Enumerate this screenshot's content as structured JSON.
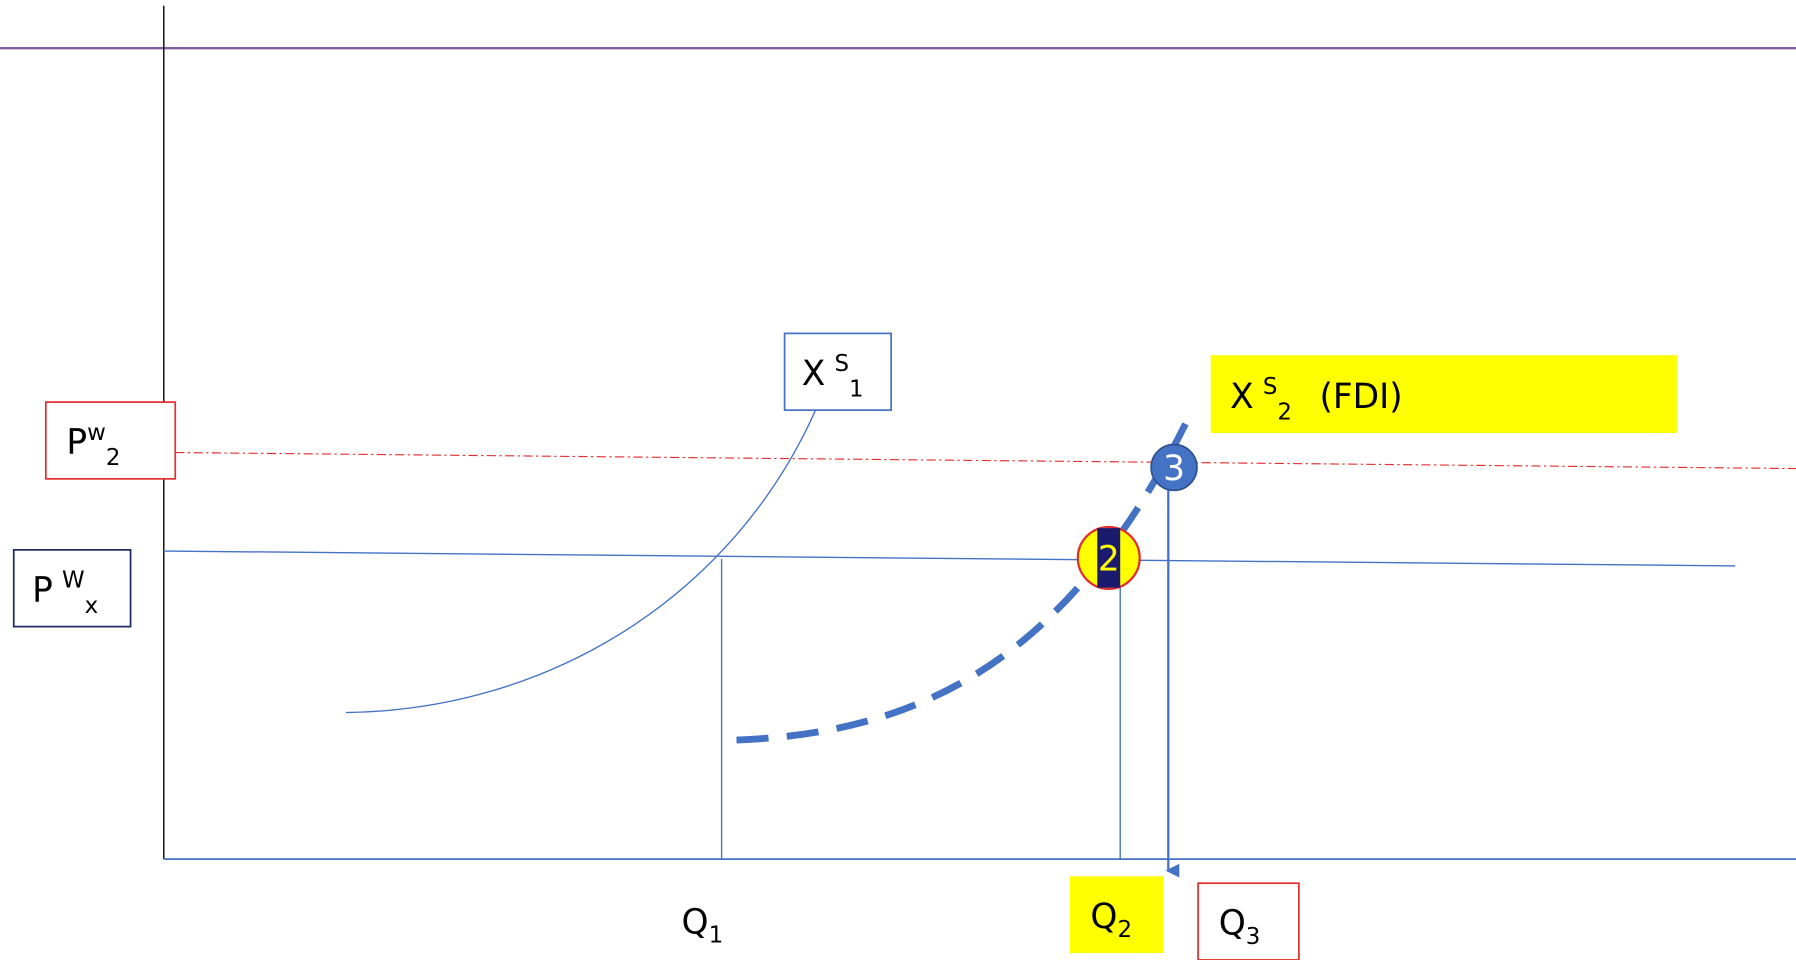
{
  "labels": {
    "pw2": {
      "base": "P",
      "sup": "w",
      "sub": "2"
    },
    "pwx": {
      "base": "P",
      "sup": "W",
      "sub": "x"
    },
    "xs1": {
      "base": "X",
      "sup": "S",
      "sub": "1"
    },
    "xs2": {
      "base": "X",
      "sup": "S",
      "sub": "2",
      "suffix": "(FDI)"
    },
    "q1": {
      "base": "Q",
      "sub": "1"
    },
    "q2": {
      "base": "Q",
      "sub": "2"
    },
    "q3": {
      "base": "Q",
      "sub": "3"
    }
  },
  "markers": [
    "2",
    "3"
  ]
}
